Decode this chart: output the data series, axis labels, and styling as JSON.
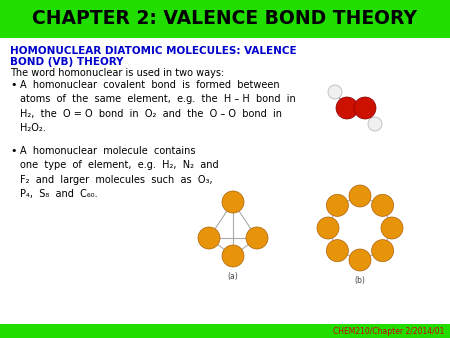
{
  "title": "CHAPTER 2: VALENCE BOND THEORY",
  "title_bg_color": "#22dd00",
  "title_font_color": "#000000",
  "title_fontsize": 13.5,
  "subtitle_line1": "HOMONUCLEAR DIATOMIC MOLECULES: VALENCE",
  "subtitle_line2": "BOND (VB) THEORY",
  "subtitle_color": "#0000cc",
  "subtitle_fontsize": 7.5,
  "intro_text": "The word homonuclear is used in two ways:",
  "intro_fontsize": 7,
  "bullet1_text": "A  homonuclear  covalent  bond  is  formed  between\natoms  of  the  same  element,  e.g.  the  H – H  bond  in\nH₂,  the  O = O  bond  in  O₂  and  the  O – O  bond  in\nH₂O₂.",
  "bullet2_text": "A  homonuclear  molecule  contains\none  type  of  element,  e.g.  H₂,  N₂  and\nF₂  and  larger  molecules  such  as  O₃,\nP₄,  S₈  and  C₆₀.",
  "bullet_fontsize": 7,
  "footer": "CHEM210/Chapter 2/2014/01",
  "footer_color": "#cc0000",
  "footer_fontsize": 5.5,
  "bg_color": "#ffffff",
  "bottom_bar_color": "#22dd00",
  "body_bg": "#ffffff",
  "title_bar_height": 38,
  "bottom_bar_height": 14
}
